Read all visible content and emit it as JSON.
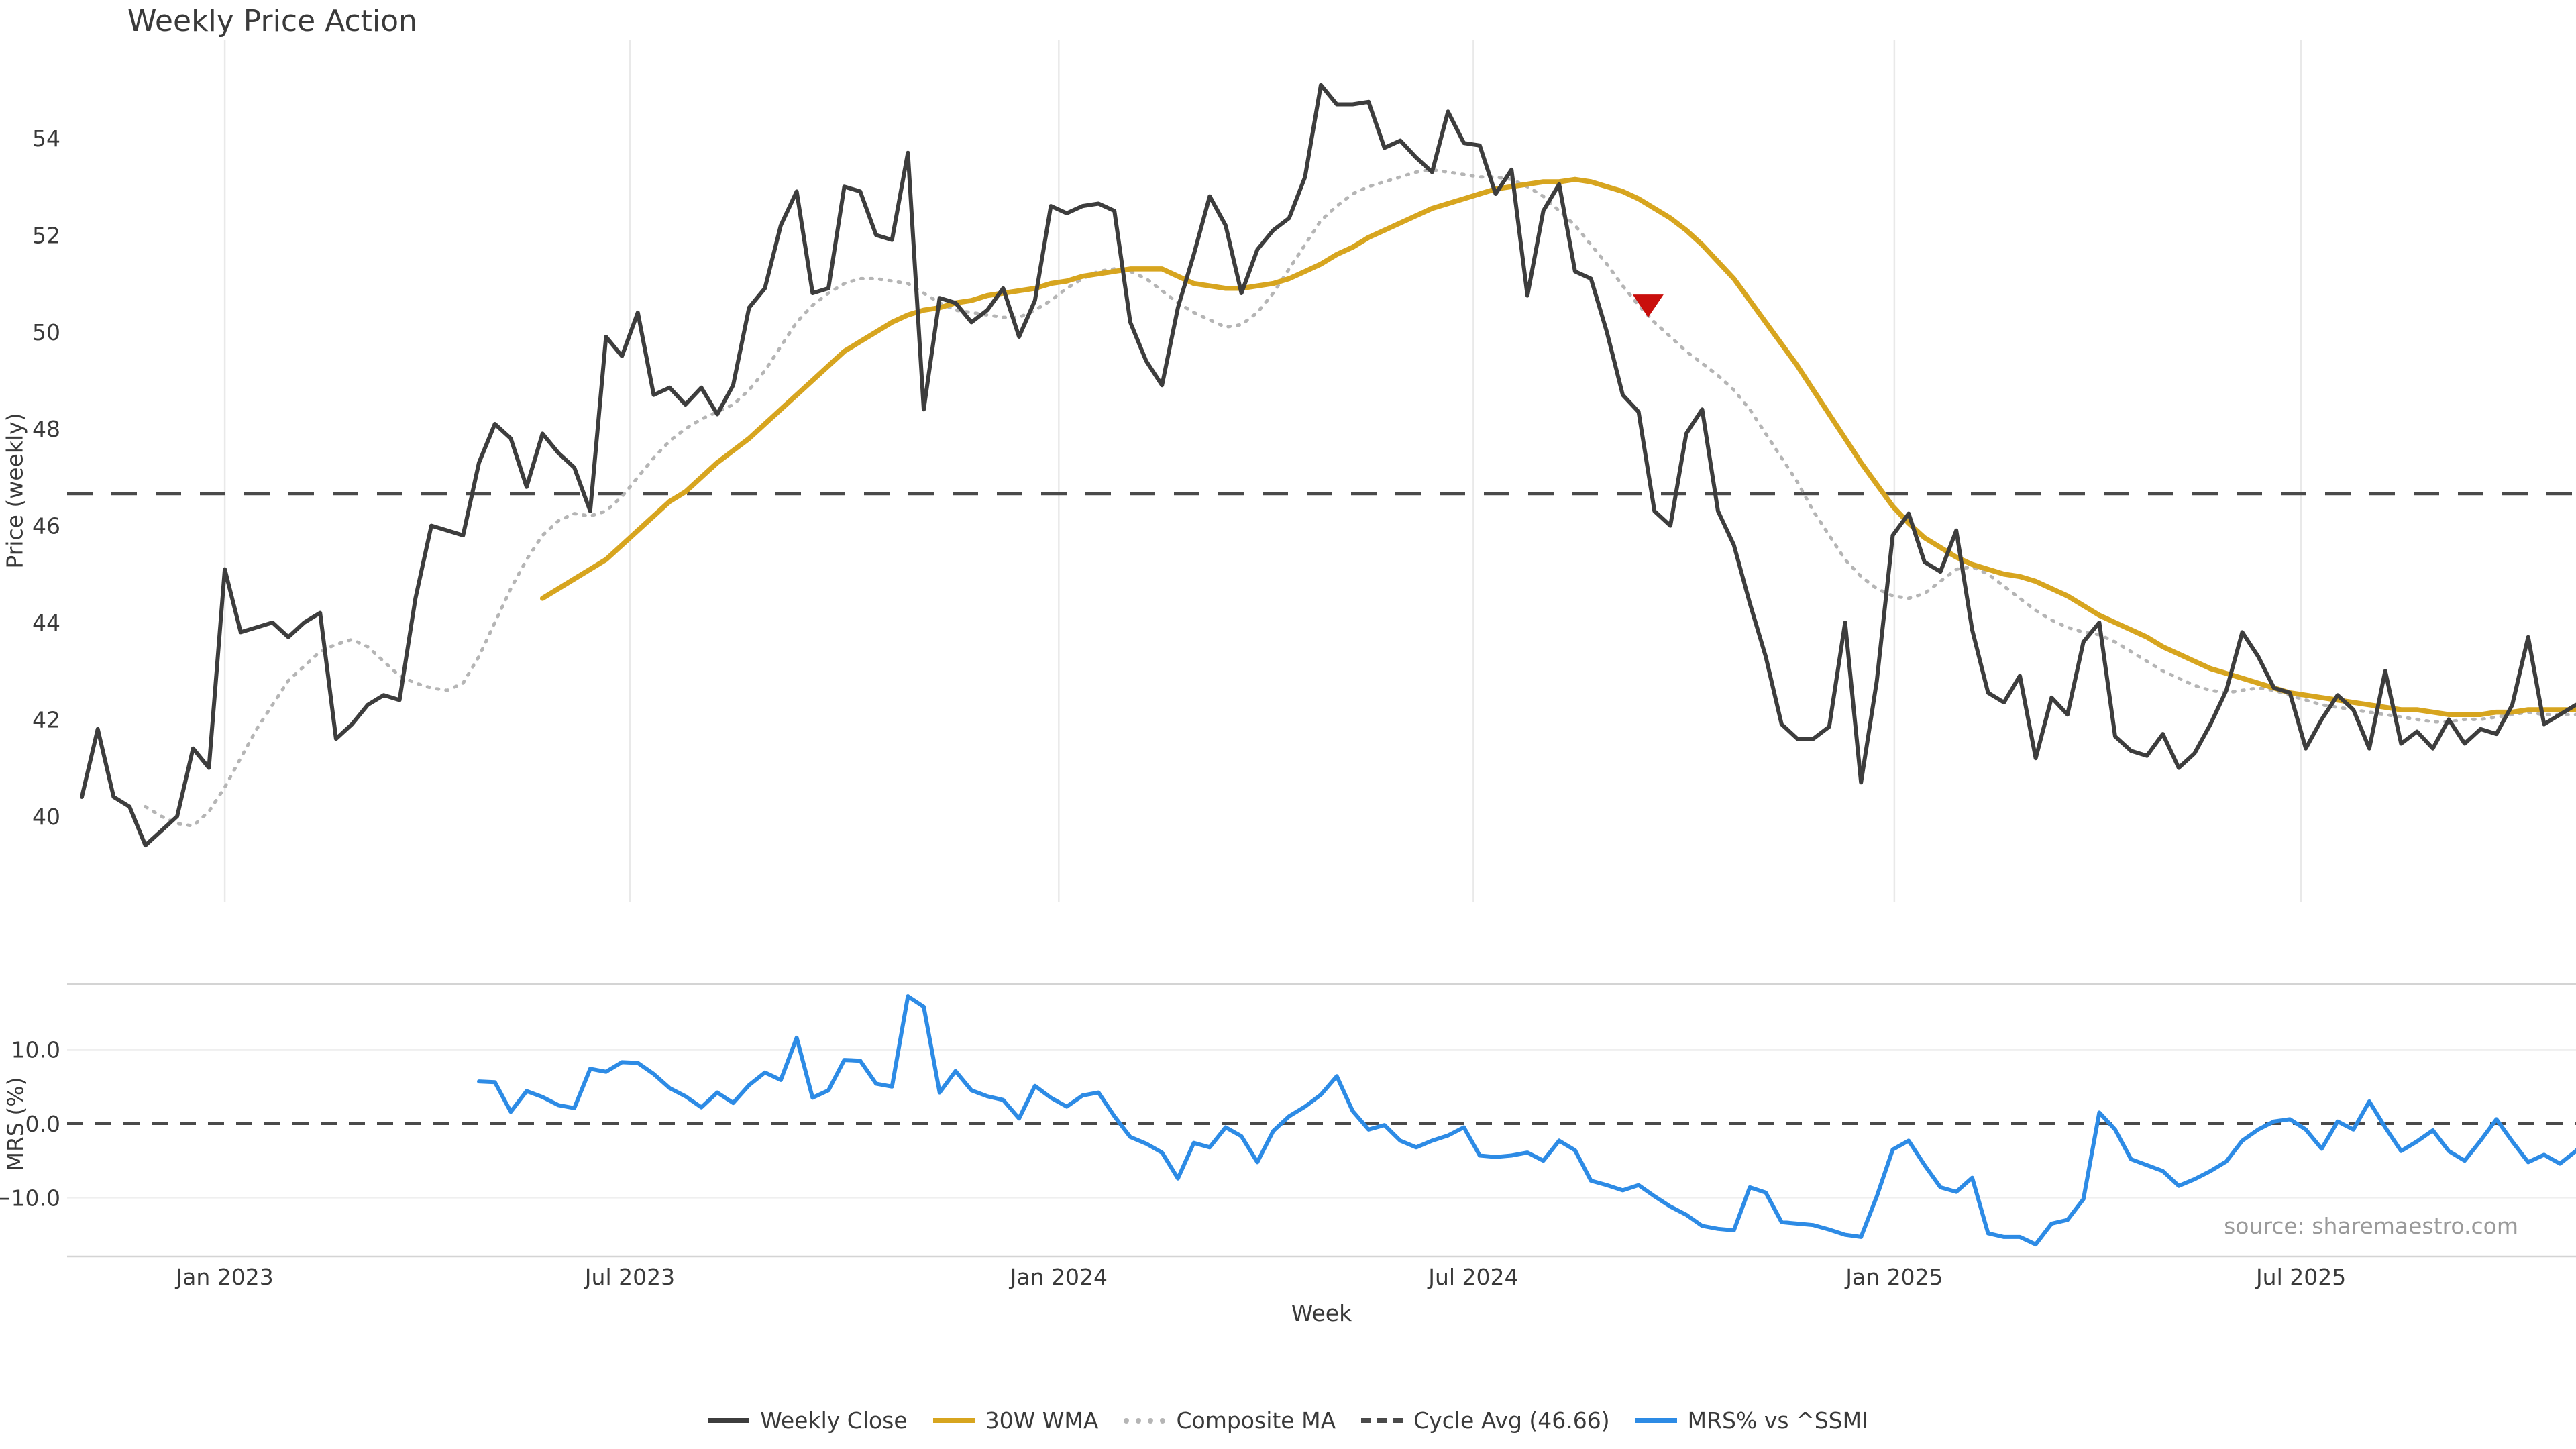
{
  "title": "Weekly Price Action",
  "source_note": "source: sharemaestro.com",
  "axes": {
    "x_label": "Week",
    "price_label": "Price (weekly)",
    "mrs_label": "MRS (%)",
    "price_yticks": [
      40,
      42,
      44,
      46,
      48,
      50,
      52,
      54
    ],
    "mrs_yticks": [
      10.0,
      0.0,
      -10.0
    ],
    "mrs_ytick_labels": [
      "10.0",
      "0.0",
      "−10.0"
    ],
    "x_ticks": [
      {
        "label": "Jan 2023",
        "week_index": 9.0
      },
      {
        "label": "Jul 2023",
        "week_index": 34.5
      },
      {
        "label": "Jan 2024",
        "week_index": 61.5
      },
      {
        "label": "Jul 2024",
        "week_index": 87.6
      },
      {
        "label": "Jan 2025",
        "week_index": 114.1
      },
      {
        "label": "Jul 2025",
        "week_index": 139.7
      }
    ]
  },
  "legend": [
    {
      "label": "Weekly Close",
      "color": "#3d3d3d",
      "style": "solid"
    },
    {
      "label": "30W WMA",
      "color": "#d7a51f",
      "style": "solid"
    },
    {
      "label": "Composite MA",
      "color": "#b5b5b5",
      "style": "dotted"
    },
    {
      "label": "Cycle Avg (46.66)",
      "color": "#4a4a4a",
      "style": "dashed"
    },
    {
      "label": "MRS% vs ^SSMI",
      "color": "#2d8be5",
      "style": "solid"
    }
  ],
  "colors": {
    "close": "#3d3d3d",
    "wma": "#d7a51f",
    "composite": "#b5b5b5",
    "cycle": "#4a4a4a",
    "mrs": "#2d8be5",
    "marker": "#c90f0c",
    "grid": "#e9e9e9",
    "panel_grid": "#efefef",
    "spine": "#d4d4d4",
    "tick_text": "#3a3a3a",
    "zero_line": "#4a4a4a"
  },
  "chart_data": {
    "type": "line",
    "title": "Weekly Price Action",
    "xlabel": "Week",
    "start_week": "2022-10-31",
    "week_interval_days": 7,
    "price_panel": {
      "ylabel": "Price (weekly)",
      "ylim": [
        38.4,
        56.0
      ],
      "cycle_avg": 46.66
    },
    "mrs_panel": {
      "ylabel": "MRS (%)",
      "ylim": [
        -17.0,
        18.8
      ],
      "zero_line": 0.0
    },
    "marker": {
      "name": "sell-signal",
      "shape": "triangle-down",
      "week_index": 98.6,
      "value": 50.55
    },
    "series": [
      {
        "name": "Weekly Close",
        "panel": "price",
        "style": "solid",
        "start_index": 0,
        "values": [
          40.4,
          41.8,
          40.4,
          40.2,
          39.4,
          39.7,
          40.0,
          41.4,
          41.0,
          45.1,
          43.8,
          43.9,
          44.0,
          43.7,
          44.0,
          44.2,
          41.6,
          41.9,
          42.3,
          42.5,
          42.4,
          44.5,
          46.0,
          45.9,
          45.8,
          47.3,
          48.1,
          47.8,
          46.8,
          47.9,
          47.5,
          47.2,
          46.3,
          49.9,
          49.5,
          50.4,
          48.7,
          48.85,
          48.5,
          48.85,
          48.3,
          48.9,
          50.5,
          50.9,
          52.2,
          52.9,
          50.8,
          50.9,
          53.0,
          52.9,
          52.0,
          51.9,
          53.7,
          48.4,
          50.7,
          50.6,
          50.2,
          50.45,
          50.9,
          49.9,
          50.65,
          52.6,
          52.45,
          52.6,
          52.65,
          52.5,
          50.2,
          49.4,
          48.9,
          50.5,
          51.6,
          52.8,
          52.2,
          50.8,
          51.7,
          52.1,
          52.35,
          53.2,
          55.1,
          54.7,
          54.7,
          54.75,
          53.8,
          53.95,
          53.6,
          53.3,
          54.55,
          53.9,
          53.85,
          52.85,
          53.35,
          50.75,
          52.5,
          53.05,
          51.25,
          51.1,
          50.0,
          48.7,
          48.35,
          46.3,
          46.0,
          47.9,
          48.4,
          46.3,
          45.6,
          44.4,
          43.3,
          41.9,
          41.6,
          41.6,
          41.85,
          44.0,
          40.7,
          42.8,
          45.8,
          46.25,
          45.25,
          45.05,
          45.9,
          43.85,
          42.55,
          42.35,
          42.9,
          41.2,
          42.45,
          42.1,
          43.6,
          44.0,
          41.65,
          41.35,
          41.25,
          41.7,
          41.0,
          41.3,
          41.9,
          42.6,
          43.8,
          43.3,
          42.65,
          42.55,
          41.4,
          42.0,
          42.5,
          42.2,
          41.4,
          43.0,
          41.5,
          41.75,
          41.4,
          42.0,
          41.5,
          41.8,
          41.7,
          42.3,
          43.7,
          41.9,
          42.1,
          42.3
        ]
      },
      {
        "name": "30W WMA",
        "panel": "price",
        "style": "solid",
        "start_index": 29,
        "values": [
          44.5,
          44.7,
          44.9,
          45.1,
          45.3,
          45.6,
          45.9,
          46.2,
          46.5,
          46.7,
          47.0,
          47.3,
          47.55,
          47.8,
          48.1,
          48.4,
          48.7,
          49.0,
          49.3,
          49.6,
          49.8,
          50.0,
          50.2,
          50.35,
          50.45,
          50.5,
          50.6,
          50.65,
          50.75,
          50.8,
          50.85,
          50.9,
          51.0,
          51.05,
          51.15,
          51.2,
          51.25,
          51.3,
          51.3,
          51.3,
          51.15,
          51.0,
          50.95,
          50.9,
          50.9,
          50.95,
          51.0,
          51.1,
          51.25,
          51.4,
          51.6,
          51.75,
          51.95,
          52.1,
          52.25,
          52.4,
          52.55,
          52.65,
          52.75,
          52.85,
          52.95,
          53.0,
          53.05,
          53.1,
          53.1,
          53.15,
          53.1,
          53.0,
          52.9,
          52.75,
          52.55,
          52.35,
          52.1,
          51.8,
          51.45,
          51.1,
          50.65,
          50.2,
          49.75,
          49.3,
          48.8,
          48.3,
          47.8,
          47.3,
          46.85,
          46.4,
          46.05,
          45.75,
          45.55,
          45.35,
          45.2,
          45.1,
          45.0,
          44.95,
          44.85,
          44.7,
          44.55,
          44.35,
          44.15,
          44.0,
          43.85,
          43.7,
          43.5,
          43.35,
          43.2,
          43.05,
          42.95,
          42.85,
          42.75,
          42.65,
          42.55,
          42.5,
          42.45,
          42.4,
          42.35,
          42.3,
          42.25,
          42.2,
          42.2,
          42.15,
          42.1,
          42.1,
          42.1,
          42.15,
          42.15,
          42.2,
          42.2,
          42.2,
          42.2
        ]
      },
      {
        "name": "Composite MA",
        "panel": "price",
        "style": "dotted",
        "start_index": 4,
        "values": [
          40.2,
          40.0,
          39.85,
          39.8,
          40.1,
          40.6,
          41.2,
          41.8,
          42.3,
          42.8,
          43.1,
          43.4,
          43.55,
          43.65,
          43.5,
          43.2,
          42.9,
          42.75,
          42.65,
          42.6,
          42.75,
          43.3,
          44.0,
          44.7,
          45.3,
          45.8,
          46.1,
          46.25,
          46.2,
          46.3,
          46.6,
          47.0,
          47.4,
          47.75,
          48.0,
          48.2,
          48.35,
          48.5,
          48.8,
          49.2,
          49.7,
          50.2,
          50.55,
          50.8,
          51.0,
          51.1,
          51.1,
          51.05,
          51.0,
          50.8,
          50.6,
          50.45,
          50.4,
          50.35,
          50.3,
          50.3,
          50.45,
          50.65,
          50.9,
          51.1,
          51.25,
          51.3,
          51.25,
          51.1,
          50.85,
          50.6,
          50.4,
          50.25,
          50.1,
          50.15,
          50.4,
          50.8,
          51.3,
          51.8,
          52.3,
          52.6,
          52.85,
          53.0,
          53.1,
          53.2,
          53.3,
          53.35,
          53.3,
          53.25,
          53.2,
          53.2,
          53.15,
          53.0,
          52.8,
          52.5,
          52.2,
          51.8,
          51.4,
          50.95,
          50.55,
          50.2,
          49.9,
          49.6,
          49.35,
          49.1,
          48.8,
          48.4,
          47.9,
          47.4,
          46.9,
          46.3,
          45.8,
          45.3,
          44.95,
          44.7,
          44.55,
          44.5,
          44.6,
          44.85,
          45.1,
          45.15,
          45.0,
          44.75,
          44.5,
          44.25,
          44.05,
          43.9,
          43.8,
          43.75,
          43.6,
          43.4,
          43.2,
          43.0,
          42.85,
          42.7,
          42.6,
          42.55,
          42.6,
          42.65,
          42.6,
          42.5,
          42.4,
          42.3,
          42.25,
          42.2,
          42.15,
          42.1,
          42.05,
          42.0,
          41.95,
          41.95,
          42.0,
          42.0,
          42.05,
          42.1,
          42.15,
          42.1,
          42.1,
          42.1
        ]
      },
      {
        "name": "MRS% vs ^SSMI",
        "panel": "mrs",
        "style": "solid",
        "start_index": 25,
        "values": [
          5.7,
          5.6,
          1.6,
          4.4,
          3.6,
          2.5,
          2.1,
          7.4,
          7.0,
          8.3,
          8.2,
          6.7,
          4.8,
          3.7,
          2.2,
          4.2,
          2.8,
          5.2,
          6.9,
          5.9,
          11.6,
          3.5,
          4.5,
          8.6,
          8.5,
          5.4,
          5.0,
          17.2,
          15.8,
          4.2,
          7.1,
          4.5,
          3.7,
          3.2,
          0.7,
          5.1,
          3.5,
          2.3,
          3.8,
          4.2,
          1.0,
          -1.8,
          -2.7,
          -3.9,
          -7.4,
          -2.6,
          -3.2,
          -0.5,
          -1.7,
          -5.2,
          -1.0,
          1.0,
          2.3,
          3.9,
          6.4,
          1.7,
          -0.8,
          -0.2,
          -2.3,
          -3.2,
          -2.3,
          -1.6,
          -0.5,
          -4.3,
          -4.5,
          -4.3,
          -3.9,
          -5.0,
          -2.3,
          -3.6,
          -7.7,
          -8.3,
          -9.0,
          -8.3,
          -9.8,
          -11.2,
          -12.3,
          -13.8,
          -14.2,
          -14.4,
          -8.6,
          -9.3,
          -13.3,
          -13.5,
          -13.7,
          -14.3,
          -15.0,
          -15.3,
          -9.8,
          -3.5,
          -2.3,
          -5.6,
          -8.6,
          -9.2,
          -7.3,
          -14.8,
          -15.3,
          -15.3,
          -16.3,
          -13.5,
          -13.0,
          -10.2,
          1.5,
          -0.8,
          -4.8,
          -5.6,
          -6.4,
          -8.4,
          -7.5,
          -6.4,
          -5.1,
          -2.3,
          -0.8,
          0.3,
          0.6,
          -0.8,
          -3.4,
          0.3,
          -0.8,
          3.0,
          -0.5,
          -3.7,
          -2.4,
          -0.9,
          -3.7,
          -5.0,
          -2.3,
          0.6,
          -2.4,
          -5.2,
          -4.2,
          -5.4,
          -3.7,
          -1.5
        ]
      }
    ]
  }
}
